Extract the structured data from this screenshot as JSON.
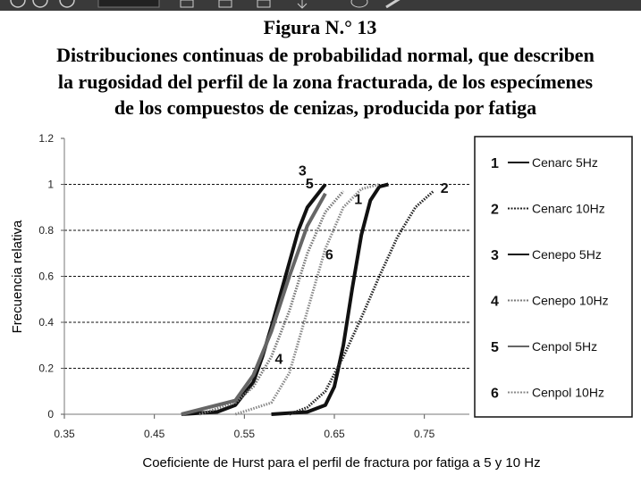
{
  "chart_data": {
    "type": "line",
    "title": "Figura N.° 13",
    "subtitle": [
      "Distribuciones continuas de probabilidad normal, que describen",
      "la rugosidad del perfil de la zona fracturada, de los especímenes",
      "de los compuestos de cenizas, producida por fatiga"
    ],
    "xlabel": "Coeficiente de Hurst para el perfil de fractura por fatiga a 5 y 10 Hz",
    "ylabel": "Frecuencia relativa",
    "xlim": [
      0.35,
      0.8
    ],
    "xticks": [
      0.35,
      0.45,
      0.55,
      0.65,
      0.75
    ],
    "ylim": [
      0,
      1.2
    ],
    "yticks": [
      0,
      0.2,
      0.4,
      0.6,
      0.8,
      1,
      1.2
    ],
    "grid": true,
    "series": [
      {
        "name": "Cenarc 5Hz",
        "label": "1",
        "color": "#111111",
        "style": "solid",
        "x": [
          0.58,
          0.62,
          0.64,
          0.65,
          0.66,
          0.67,
          0.68,
          0.69,
          0.7,
          0.71
        ],
        "values": [
          0,
          0.01,
          0.04,
          0.12,
          0.3,
          0.55,
          0.78,
          0.93,
          0.99,
          1
        ]
      },
      {
        "name": "Cenarc 10Hz",
        "label": "2",
        "color": "#222222",
        "style": "dotted",
        "x": [
          0.6,
          0.62,
          0.64,
          0.66,
          0.68,
          0.7,
          0.72,
          0.74,
          0.76
        ],
        "values": [
          0,
          0.03,
          0.1,
          0.25,
          0.42,
          0.6,
          0.77,
          0.9,
          0.97
        ]
      },
      {
        "name": "Cenepo 5Hz",
        "label": "3",
        "color": "#111111",
        "style": "solid",
        "x": [
          0.48,
          0.52,
          0.54,
          0.56,
          0.57,
          0.58,
          0.59,
          0.6,
          0.61,
          0.62,
          0.64
        ],
        "values": [
          0,
          0.01,
          0.04,
          0.14,
          0.25,
          0.38,
          0.52,
          0.66,
          0.8,
          0.9,
          1
        ]
      },
      {
        "name": "Cenepo 10Hz",
        "label": "4",
        "color": "#777777",
        "style": "dotted",
        "x": [
          0.5,
          0.54,
          0.56,
          0.58,
          0.6,
          0.62,
          0.64,
          0.66
        ],
        "values": [
          0,
          0.05,
          0.12,
          0.25,
          0.45,
          0.7,
          0.88,
          0.97
        ]
      },
      {
        "name": "Cenpol 5Hz",
        "label": "5",
        "color": "#666666",
        "style": "solid",
        "x": [
          0.48,
          0.54,
          0.56,
          0.58,
          0.6,
          0.62,
          0.64
        ],
        "values": [
          0,
          0.06,
          0.17,
          0.36,
          0.6,
          0.82,
          0.96
        ]
      },
      {
        "name": "Cenpol 10Hz",
        "label": "6",
        "color": "#888888",
        "style": "dotted",
        "x": [
          0.54,
          0.58,
          0.6,
          0.62,
          0.64,
          0.66,
          0.68,
          0.7
        ],
        "values": [
          0,
          0.05,
          0.18,
          0.45,
          0.72,
          0.9,
          0.98,
          1
        ]
      }
    ]
  }
}
